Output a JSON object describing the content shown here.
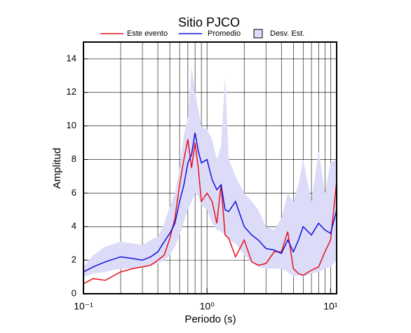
{
  "chart_data": {
    "type": "line",
    "title": "Sitio PJCO",
    "x_label": "Periodo (s)",
    "y_label": "Amplitud",
    "x_scale": "log",
    "grid": true,
    "xlim": [
      0.1,
      11.2
    ],
    "ylim": [
      0,
      15
    ],
    "xticks": [
      {
        "value": 0.1,
        "label": "10⁻¹"
      },
      {
        "value": 1,
        "label": "10⁰"
      },
      {
        "value": 10,
        "label": "10¹"
      }
    ],
    "xgrid": [
      0.2,
      0.3,
      0.4,
      0.5,
      0.6,
      0.7,
      0.8,
      0.9,
      2,
      3,
      4,
      5,
      6,
      7,
      8,
      9
    ],
    "yticks": [
      0,
      2,
      4,
      6,
      8,
      10,
      12,
      14
    ],
    "x": [
      0.1,
      0.12,
      0.15,
      0.2,
      0.25,
      0.3,
      0.35,
      0.4,
      0.45,
      0.5,
      0.55,
      0.6,
      0.65,
      0.7,
      0.75,
      0.8,
      0.85,
      0.9,
      1.0,
      1.1,
      1.2,
      1.3,
      1.4,
      1.5,
      1.7,
      2.0,
      2.3,
      2.6,
      3.0,
      3.5,
      4.0,
      4.5,
      5.0,
      5.5,
      6.0,
      7.0,
      8.0,
      9.0,
      10.0,
      11.2
    ],
    "series": [
      {
        "name": "Este evento",
        "color": "#e8101a",
        "values": [
          0.6,
          0.9,
          0.8,
          1.3,
          1.5,
          1.6,
          1.7,
          2.0,
          2.3,
          3.3,
          4.5,
          6.5,
          8.0,
          9.2,
          7.5,
          9.0,
          7.5,
          5.5,
          6.0,
          5.5,
          4.2,
          6.5,
          3.5,
          3.3,
          2.2,
          3.2,
          1.9,
          1.7,
          1.8,
          2.5,
          2.5,
          3.7,
          1.5,
          1.2,
          1.1,
          1.4,
          1.6,
          2.5,
          3.2,
          6.7
        ]
      },
      {
        "name": "Promedio",
        "color": "#1010e0",
        "values": [
          1.3,
          1.6,
          1.9,
          2.2,
          2.1,
          2.0,
          2.2,
          2.5,
          3.1,
          3.6,
          4.2,
          5.5,
          6.5,
          7.8,
          8.3,
          9.6,
          8.5,
          7.8,
          8.0,
          6.8,
          6.2,
          6.5,
          5.0,
          4.9,
          5.5,
          4.0,
          3.5,
          3.2,
          2.7,
          2.6,
          2.4,
          3.2,
          2.5,
          3.2,
          4.0,
          3.5,
          4.2,
          3.8,
          3.6,
          5.0
        ]
      },
      {
        "name": "Desv. Est.",
        "color": "#dcdcf8",
        "upper": [
          1.6,
          2.3,
          2.8,
          3.1,
          3.0,
          2.9,
          3.2,
          3.4,
          4.2,
          5.2,
          6.0,
          7.5,
          9.5,
          10.5,
          13.5,
          12.0,
          11.0,
          10.0,
          9.8,
          9.2,
          8.0,
          8.8,
          13.0,
          8.0,
          7.0,
          6.0,
          5.5,
          5.0,
          4.0,
          3.8,
          4.5,
          6.0,
          5.5,
          6.5,
          8.0,
          5.5,
          8.5,
          6.0,
          7.8,
          8.0
        ],
        "lower": [
          1.0,
          1.2,
          1.3,
          1.5,
          1.5,
          1.6,
          1.7,
          1.8,
          2.0,
          2.3,
          2.8,
          3.5,
          4.3,
          5.0,
          5.5,
          6.0,
          5.8,
          5.3,
          5.0,
          4.2,
          3.8,
          3.7,
          3.5,
          3.2,
          3.0,
          2.3,
          1.9,
          1.6,
          1.5,
          1.5,
          1.5,
          1.3,
          1.0,
          1.1,
          1.0,
          1.2,
          1.3,
          1.5,
          1.6,
          2.0
        ]
      }
    ]
  }
}
